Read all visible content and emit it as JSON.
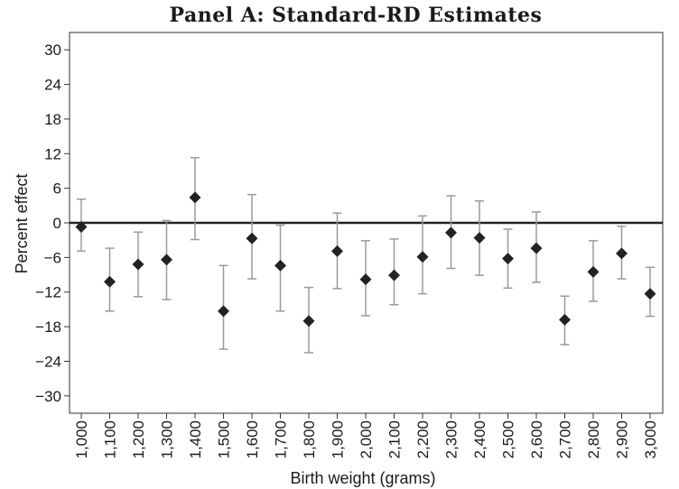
{
  "chart_data": {
    "type": "scatter",
    "title": "Panel A: Standard-RD Estimates",
    "xlabel": "Birth weight (grams)",
    "ylabel": "Percent effect",
    "ylim": [
      -33,
      33
    ],
    "yticks": [
      "30",
      "24",
      "18",
      "12",
      "6",
      "0",
      "−6",
      "−12",
      "−18",
      "−24",
      "−30"
    ],
    "ytick_values": [
      30,
      24,
      18,
      12,
      6,
      0,
      -6,
      -12,
      -18,
      -24,
      -30
    ],
    "reference_line": 0,
    "grid": false,
    "legend": "none",
    "categories": [
      "1,000",
      "1,100",
      "1,200",
      "1,300",
      "1,400",
      "1,500",
      "1,600",
      "1,700",
      "1,800",
      "1,900",
      "2,000",
      "2,100",
      "2,200",
      "2,300",
      "2,400",
      "2,500",
      "2,600",
      "2,700",
      "2,800",
      "2,900",
      "3,000"
    ],
    "series": [
      {
        "estimates": [
          -0.7,
          -10.2,
          -7.2,
          -6.4,
          4.4,
          -15.3,
          -2.7,
          -7.4,
          -17.0,
          -4.9,
          -9.8,
          -9.1,
          -5.9,
          -1.7,
          -2.6,
          -6.2,
          -4.4,
          -16.8,
          -8.5,
          -5.3,
          -12.3
        ],
        "ci_upper": [
          4.1,
          -4.4,
          -1.6,
          0.4,
          11.3,
          -7.4,
          4.9,
          -0.4,
          -11.2,
          1.7,
          -3.1,
          -2.8,
          1.2,
          4.7,
          3.8,
          -1.1,
          1.9,
          -12.7,
          -3.1,
          -0.6,
          -7.7
        ],
        "ci_lower": [
          -4.9,
          -15.3,
          -12.8,
          -13.3,
          -2.9,
          -21.9,
          -9.7,
          -15.3,
          -22.5,
          -11.4,
          -16.1,
          -14.2,
          -12.3,
          -7.9,
          -9.1,
          -11.3,
          -10.3,
          -21.1,
          -13.6,
          -9.7,
          -16.2
        ]
      }
    ],
    "colors": {
      "marker": "#222222",
      "error_bar": "#9a9a9a",
      "zero_line": "#222222",
      "axis": "#333333"
    }
  }
}
